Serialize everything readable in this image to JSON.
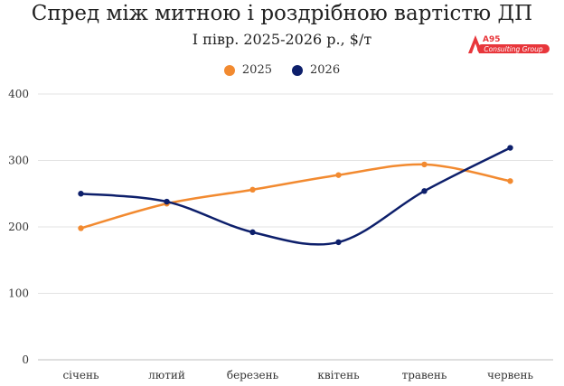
{
  "title": "Спред між митною і роздрібною вартістю ДП",
  "subtitle": "І півр. 2025-2026 р., $/т",
  "logo": {
    "mark": "A95",
    "text": "Consulting Group",
    "color": "#e8363b"
  },
  "chart_data": {
    "type": "line",
    "categories": [
      "січень",
      "лютий",
      "березень",
      "квітень",
      "травень",
      "червень"
    ],
    "series": [
      {
        "name": "2025",
        "color": "#f28a30",
        "values": [
          198,
          235,
          256,
          278,
          294,
          269
        ]
      },
      {
        "name": "2026",
        "color": "#0d1f6b",
        "values": [
          250,
          238,
          192,
          177,
          254,
          319
        ]
      }
    ],
    "ylim": [
      0,
      400
    ],
    "yticks": [
      0,
      100,
      200,
      300,
      400
    ],
    "grid": true,
    "smooth": true,
    "legend_position": "top"
  }
}
